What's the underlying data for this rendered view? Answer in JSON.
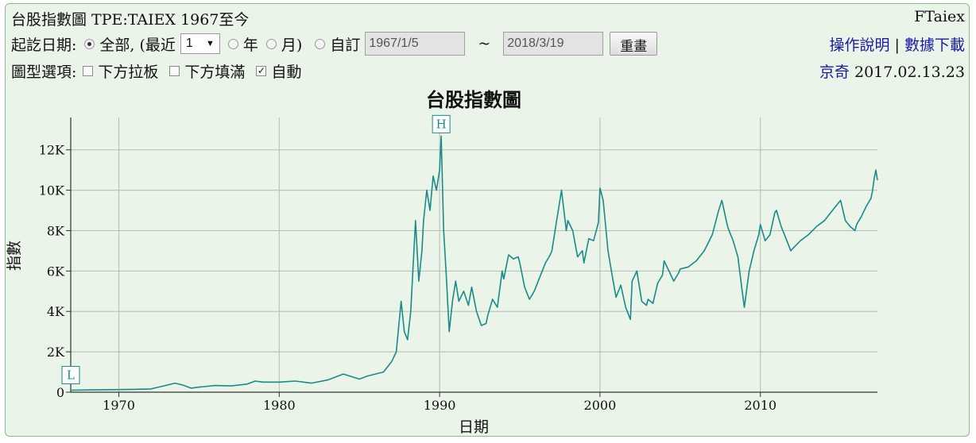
{
  "header": {
    "title": "台股指數圖 TPE:TAIEX 1967至今",
    "brand": "FTaiex",
    "range_label": "起訖日期:",
    "opt_all": "全部, (最近",
    "recent_value": "1",
    "opt_year": "年",
    "opt_month": "月)",
    "opt_custom": "自訂",
    "start_date": "1967/1/5",
    "tilde": "~",
    "end_date": "2018/3/19",
    "reset_btn": "重畫",
    "help_link": "操作說明",
    "sep": "|",
    "download_link": "數據下載",
    "chart_opts_label": "圖型選項:",
    "opt_lower_drag": "下方拉板",
    "opt_lower_fill": "下方填滿",
    "opt_auto": "自動",
    "credit_link": "京奇",
    "credit_date": "2017.02.13.23"
  },
  "colors": {
    "line": "#1a8a8a",
    "grid": "#b4bcb4",
    "panel_bg": "#eaf4e8",
    "link": "#1a1aa0"
  },
  "chart_data": {
    "type": "line",
    "title": "台股指數圖",
    "xlabel": "日期",
    "ylabel": "指數",
    "xlim": [
      1967.0,
      2017.3
    ],
    "ylim": [
      0,
      13600
    ],
    "x_ticks": [
      1970,
      1980,
      1990,
      2000,
      2010
    ],
    "x_tick_labels": [
      "1970",
      "1980",
      "1990",
      "2000",
      "2010"
    ],
    "y_ticks": [
      0,
      2000,
      4000,
      6000,
      8000,
      10000,
      12000
    ],
    "y_tick_labels": [
      "0",
      "2K",
      "4K",
      "6K",
      "8K",
      "10K",
      "12K"
    ],
    "grid": true,
    "markers": [
      {
        "label": "H",
        "x": 1990.1,
        "y": 12682
      },
      {
        "label": "L",
        "x": 1967.0,
        "y": 100
      }
    ],
    "series": [
      {
        "x": [
          1967.0,
          1968.0,
          1969.0,
          1970.0,
          1971.0,
          1972.0,
          1973.0,
          1973.5,
          1974.0,
          1974.5,
          1975.0,
          1976.0,
          1977.0,
          1978.0,
          1978.5,
          1979.0,
          1980.0,
          1981.0,
          1982.0,
          1983.0,
          1984.0,
          1985.0,
          1985.5,
          1986.0,
          1986.5,
          1987.0,
          1987.3,
          1987.6,
          1987.8,
          1988.0,
          1988.2,
          1988.5,
          1988.7,
          1988.9,
          1989.0,
          1989.2,
          1989.4,
          1989.6,
          1989.8,
          1990.0,
          1990.1,
          1990.25,
          1990.4,
          1990.6,
          1990.8,
          1991.0,
          1991.2,
          1991.5,
          1991.8,
          1992.0,
          1992.3,
          1992.6,
          1992.9,
          1993.0,
          1993.3,
          1993.6,
          1993.9,
          1994.0,
          1994.3,
          1994.6,
          1994.9,
          1995.0,
          1995.3,
          1995.6,
          1995.9,
          1996.0,
          1996.3,
          1996.6,
          1996.9,
          1997.0,
          1997.3,
          1997.6,
          1997.9,
          1998.0,
          1998.3,
          1998.6,
          1998.9,
          1999.0,
          1999.3,
          1999.6,
          1999.9,
          2000.0,
          2000.2,
          2000.5,
          2000.8,
          2001.0,
          2001.3,
          2001.6,
          2001.9,
          2002.0,
          2002.3,
          2002.6,
          2002.9,
          2003.0,
          2003.3,
          2003.6,
          2003.9,
          2004.0,
          2004.3,
          2004.6,
          2004.9,
          2005.0,
          2005.5,
          2006.0,
          2006.5,
          2007.0,
          2007.4,
          2007.6,
          2007.9,
          2008.0,
          2008.3,
          2008.6,
          2008.9,
          2009.0,
          2009.3,
          2009.6,
          2009.9,
          2010.0,
          2010.3,
          2010.6,
          2010.9,
          2011.0,
          2011.3,
          2011.6,
          2011.9,
          2012.0,
          2012.5,
          2013.0,
          2013.5,
          2014.0,
          2014.5,
          2015.0,
          2015.3,
          2015.6,
          2015.9,
          2016.0,
          2016.3,
          2016.6,
          2016.9,
          2017.0,
          2017.1,
          2017.2,
          2017.3
        ],
        "y": [
          100,
          110,
          120,
          130,
          140,
          160,
          350,
          450,
          350,
          200,
          250,
          330,
          310,
          400,
          550,
          500,
          500,
          550,
          450,
          600,
          900,
          650,
          800,
          900,
          1000,
          1500,
          2000,
          4500,
          3000,
          2600,
          4000,
          8500,
          5500,
          7000,
          8500,
          10000,
          9000,
          10700,
          10000,
          11000,
          12682,
          8000,
          6000,
          3000,
          4500,
          5500,
          4500,
          5000,
          4300,
          5200,
          4000,
          3300,
          3400,
          3800,
          4600,
          4200,
          6000,
          5600,
          6800,
          6600,
          6700,
          6400,
          5200,
          4600,
          5000,
          5200,
          5800,
          6400,
          6800,
          7000,
          8500,
          10000,
          8000,
          8500,
          8000,
          6700,
          7000,
          6400,
          7600,
          7500,
          8400,
          10100,
          9500,
          7000,
          5600,
          4700,
          5300,
          4200,
          3600,
          5500,
          6000,
          4500,
          4300,
          4600,
          4400,
          5400,
          5800,
          6500,
          6000,
          5500,
          5900,
          6100,
          6200,
          6500,
          7000,
          7800,
          9000,
          9500,
          8400,
          8100,
          7500,
          6700,
          4800,
          4200,
          6000,
          7000,
          7800,
          8300,
          7500,
          7800,
          8900,
          9000,
          8200,
          7600,
          7000,
          7100,
          7500,
          7800,
          8200,
          8500,
          9000,
          9500,
          8500,
          8200,
          8000,
          8300,
          8700,
          9200,
          9600,
          10000,
          10600,
          11000,
          10500
        ]
      }
    ]
  }
}
